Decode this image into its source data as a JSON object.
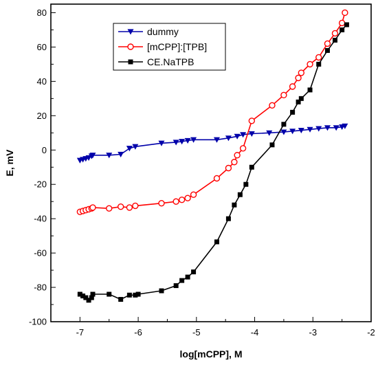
{
  "chart_data": {
    "type": "line",
    "xlabel": "log[mCPP], M",
    "ylabel": "E, mV",
    "xlim": [
      -7.5,
      -2.0
    ],
    "ylim": [
      -100,
      85
    ],
    "xticks": [
      -7,
      -6,
      -5,
      -4,
      -3,
      -2
    ],
    "yticks": [
      -100,
      -80,
      -60,
      -40,
      -20,
      0,
      20,
      40,
      60,
      80
    ],
    "grid": false,
    "legend_position": "top-left",
    "series": [
      {
        "name": "dummy",
        "color": "#0000aa",
        "marker": "triangle-down",
        "x": [
          -7.0,
          -6.95,
          -6.9,
          -6.85,
          -6.8,
          -6.78,
          -6.5,
          -6.3,
          -6.15,
          -6.05,
          -5.6,
          -5.35,
          -5.25,
          -5.15,
          -5.05,
          -4.65,
          -4.45,
          -4.3,
          -4.2,
          -4.05,
          -3.75,
          -3.5,
          -3.35,
          -3.2,
          -3.05,
          -2.9,
          -2.75,
          -2.6,
          -2.5,
          -2.45
        ],
        "y": [
          -6,
          -5.5,
          -5,
          -4.5,
          -3.5,
          -3,
          -3,
          -2.5,
          1,
          2,
          4,
          4.5,
          5,
          5.5,
          6,
          6,
          7,
          8,
          9,
          9.5,
          10,
          10.5,
          11,
          11.5,
          12,
          12.5,
          13,
          13,
          13.5,
          14
        ]
      },
      {
        "name": "[mCPP]:[TPB]",
        "color": "#ff0000",
        "marker": "circle-open",
        "x": [
          -7.0,
          -6.95,
          -6.9,
          -6.85,
          -6.8,
          -6.78,
          -6.5,
          -6.3,
          -6.15,
          -6.05,
          -5.6,
          -5.35,
          -5.25,
          -5.15,
          -5.05,
          -4.65,
          -4.45,
          -4.35,
          -4.3,
          -4.2,
          -4.05,
          -3.7,
          -3.5,
          -3.35,
          -3.25,
          -3.2,
          -3.05,
          -2.9,
          -2.75,
          -2.62,
          -2.5,
          -2.45
        ],
        "y": [
          -36,
          -35.5,
          -35,
          -34.5,
          -34,
          -33.5,
          -34,
          -33,
          -33.5,
          -32.5,
          -31,
          -30,
          -29,
          -28,
          -26,
          -16.5,
          -10.5,
          -7,
          -3,
          1,
          17,
          26,
          32,
          37,
          42,
          45,
          50,
          54,
          62,
          68,
          74,
          80
        ]
      },
      {
        "name": "CE.NaTPB",
        "color": "#000000",
        "marker": "square",
        "x": [
          -7.0,
          -6.95,
          -6.9,
          -6.85,
          -6.8,
          -6.78,
          -6.5,
          -6.3,
          -6.15,
          -6.05,
          -6.0,
          -5.6,
          -5.35,
          -5.25,
          -5.15,
          -5.05,
          -4.65,
          -4.45,
          -4.35,
          -4.25,
          -4.15,
          -4.05,
          -3.7,
          -3.5,
          -3.35,
          -3.25,
          -3.2,
          -3.05,
          -2.9,
          -2.75,
          -2.62,
          -2.5,
          -2.42
        ],
        "y": [
          -84,
          -85,
          -86,
          -87.5,
          -86,
          -84,
          -84,
          -87,
          -84.5,
          -84.5,
          -84,
          -82,
          -79,
          -76,
          -74,
          -71,
          -53.5,
          -40,
          -32,
          -26,
          -20,
          -10,
          3,
          15,
          22,
          28,
          30,
          35,
          50,
          58,
          64,
          70,
          73
        ]
      }
    ]
  }
}
